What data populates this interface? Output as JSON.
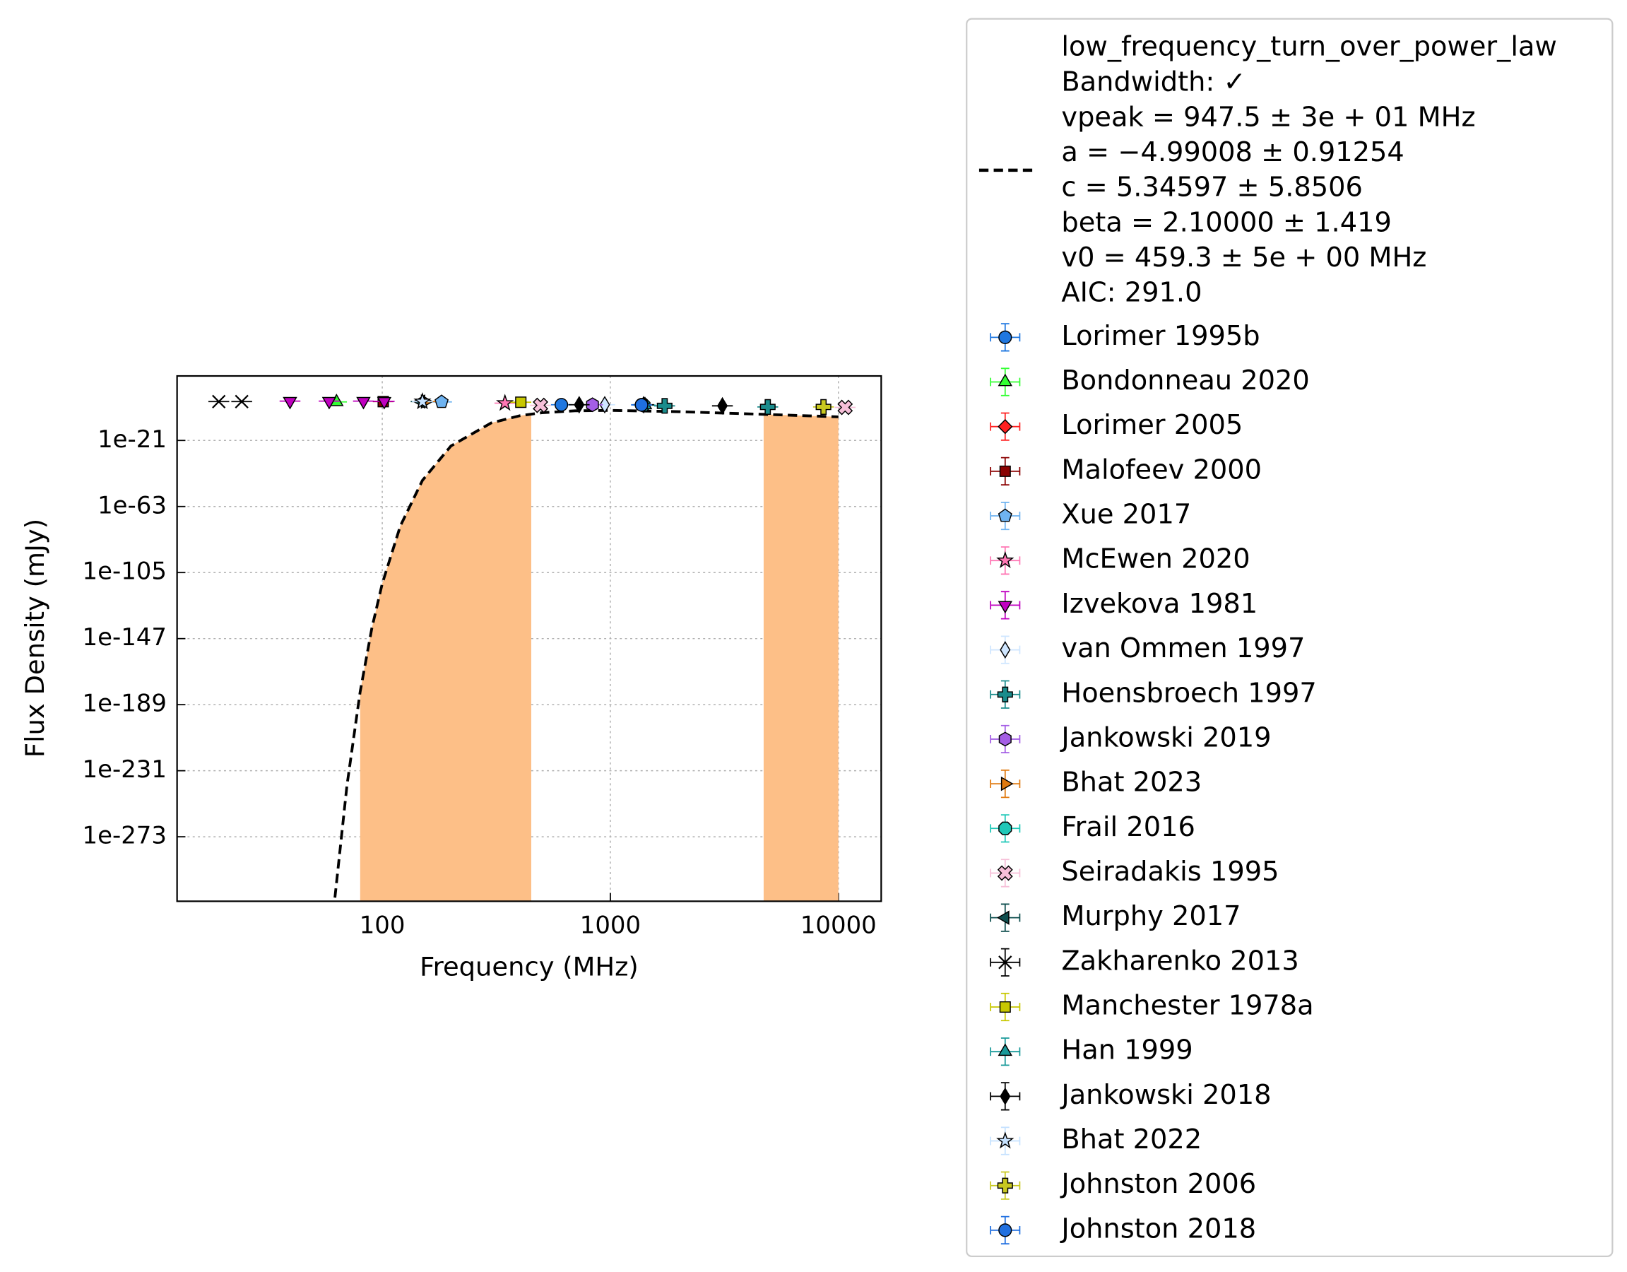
{
  "chart_data": {
    "type": "scatter",
    "xlabel": "Frequency (MHz)",
    "ylabel": "Flux Density (mJy)",
    "xlog": true,
    "ylog": true,
    "grid": true,
    "legend": "outside right",
    "xlim": [
      12.6,
      15400
    ],
    "ylim": [
      1e-314,
      1e+20
    ],
    "xticks": [
      100,
      1000,
      10000
    ],
    "yticks": [
      {
        "value": 1e-21,
        "label": "1e-21"
      },
      {
        "value": 1e-63,
        "label": "1e-63"
      },
      {
        "value": 1e-105,
        "label": "1e-105"
      },
      {
        "value": 1e-147,
        "label": "1e-147"
      },
      {
        "value": 1e-189,
        "label": "1e-189"
      },
      {
        "value": 1e-231,
        "label": "1e-231"
      },
      {
        "value": 1e-273,
        "label": "1e-273"
      }
    ],
    "fit": {
      "name": "low_frequency_turn_over_power_law",
      "color": "#000000",
      "style": "dashed",
      "details": [
        "Bandwidth: ✓",
        "vpeak = 947.5 ± 3e + 01 MHz",
        "a = −4.99008 ± 0.91254",
        "c = 5.34597 ± 5.8506",
        "beta = 2.10000 ± 1.419",
        "v0 = 459.3 ± 5e + 00 MHz",
        "AIC: 291.0"
      ],
      "x": [
        62,
        70,
        80,
        90,
        100,
        120,
        150,
        200,
        300,
        400,
        500,
        700,
        1000,
        2000,
        5000,
        10000
      ],
      "values": [
        2e-312,
        3e-241,
        1.6e-181,
        4e-141,
        1e-112,
        4e-76,
        4e-47,
        3e-25,
        1.3e-10,
        5e-06,
        0.0004,
        0.007,
        0.013,
        0.002,
        3e-05,
        1e-06
      ]
    },
    "shaded_regions": {
      "color": "#fdbf87",
      "ranges": [
        [
          80,
          450
        ],
        [
          4700,
          11000
        ]
      ]
    },
    "series": [
      {
        "name": "Lorimer 1995b",
        "color": "#1f77e0",
        "marker": "o",
        "x": [
          610,
          1370
        ],
        "values": [
          50,
          50
        ]
      },
      {
        "name": "Bondonneau 2020",
        "color": "#33ff33",
        "marker": "^",
        "x": [
          63
        ],
        "values": [
          3000
        ]
      },
      {
        "name": "Lorimer 2005",
        "color": "#ff2020",
        "marker": "D",
        "x": [
          1400
        ],
        "values": [
          40
        ]
      },
      {
        "name": "Malofeev 2000",
        "color": "#8b0000",
        "marker": "s",
        "x": [
          101
        ],
        "values": [
          5000
        ]
      },
      {
        "name": "Xue 2017",
        "color": "#6fb3f0",
        "marker": "p",
        "x": [
          182
        ],
        "values": [
          3000
        ]
      },
      {
        "name": "McEwen 2020",
        "color": "#ff77b4",
        "marker": "*",
        "x": [
          345
        ],
        "values": [
          500
        ]
      },
      {
        "name": "Izvekova 1981",
        "color": "#c000c0",
        "marker": "v",
        "x": [
          39.4,
          58.5,
          82.7,
          102
        ],
        "values": [
          10000,
          10000,
          10000,
          8000
        ]
      },
      {
        "name": "van Ommen 1997",
        "color": "#cfe6ff",
        "marker": "d",
        "x": [
          945
        ],
        "values": [
          50
        ]
      },
      {
        "name": "Hoensbroech 1997",
        "color": "#1a8c8c",
        "marker": "P",
        "x": [
          1730,
          4900
        ],
        "values": [
          10,
          2
        ]
      },
      {
        "name": "Jankowski 2019",
        "color": "#a45ee5",
        "marker": "h",
        "x": [
          835
        ],
        "values": [
          50
        ]
      },
      {
        "name": "Bhat 2023",
        "color": "#e07a10",
        "marker": ">",
        "x": [
          154
        ],
        "values": [
          5000
        ]
      },
      {
        "name": "Frail 2016",
        "color": "#1fc8b8",
        "marker": "8",
        "x": [
          1400
        ],
        "values": [
          30
        ]
      },
      {
        "name": "Seiradakis 1995",
        "color": "#f6bfd8",
        "marker": "X",
        "x": [
          494,
          10700
        ],
        "values": [
          20,
          1
        ]
      },
      {
        "name": "Murphy 2017",
        "color": "#0f4f4f",
        "marker": "<",
        "x": [
          148
        ],
        "values": [
          5000
        ]
      },
      {
        "name": "Zakharenko 2013",
        "color": "#000000",
        "marker": "x",
        "x": [
          19.2,
          24.2
        ],
        "values": [
          5000,
          5000
        ]
      },
      {
        "name": "Manchester 1978a",
        "color": "#c8c800",
        "marker": "s",
        "x": [
          405
        ],
        "values": [
          2000
        ]
      },
      {
        "name": "Han 1999",
        "color": "#1a9a9a",
        "marker": "^",
        "x": [
          1420
        ],
        "values": [
          30
        ]
      },
      {
        "name": "Jankowski 2018",
        "color": "#000000",
        "marker": "d",
        "x": [
          730,
          1400,
          3100
        ],
        "values": [
          50,
          50,
          10
        ]
      },
      {
        "name": "Bhat 2022",
        "color": "#c6e2ff",
        "marker": "*",
        "x": [
          150
        ],
        "values": [
          5000
        ]
      },
      {
        "name": "Johnston 2006",
        "color": "#c8c820",
        "marker": "P",
        "x": [
          8600
        ],
        "values": [
          2
        ]
      },
      {
        "name": "Johnston 2018",
        "color": "#1f6fe0",
        "marker": "o",
        "x": [
          1370
        ],
        "values": [
          40
        ]
      }
    ]
  }
}
